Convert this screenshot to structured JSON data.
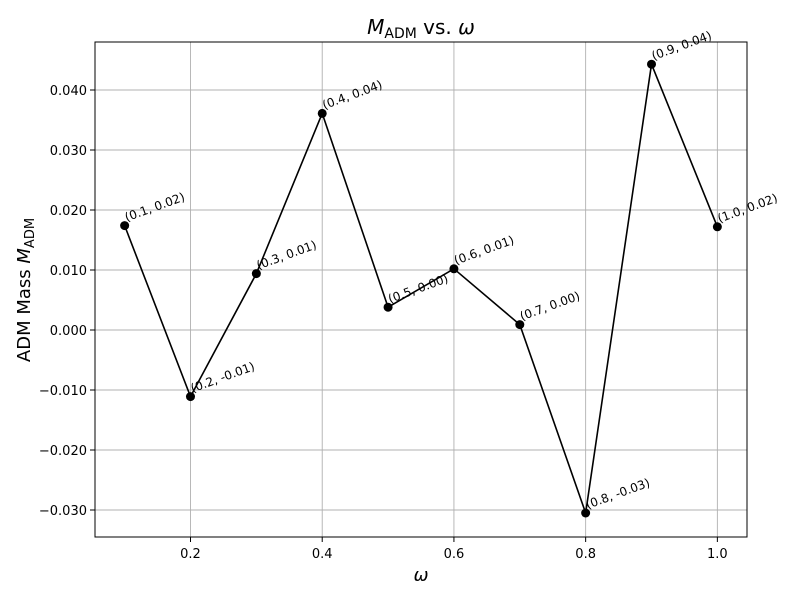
{
  "chart_data": {
    "type": "line",
    "title": {
      "prefix_italic": "M",
      "prefix_sub": "ADM",
      "middle": " vs. ",
      "suffix_italic": "ω"
    },
    "xlabel": "ω",
    "ylabel": {
      "text": "ADM Mass ",
      "italic": "M",
      "sub": "ADM"
    },
    "xlim": [
      0.055,
      1.045
    ],
    "ylim": [
      -0.0345,
      0.048
    ],
    "x_ticks": [
      0.2,
      0.4,
      0.6,
      0.8,
      1.0
    ],
    "x_tick_labels": [
      "0.2",
      "0.4",
      "0.6",
      "0.8",
      "1.0"
    ],
    "y_ticks": [
      -0.03,
      -0.02,
      -0.01,
      0.0,
      0.01,
      0.02,
      0.03,
      0.04
    ],
    "y_tick_labels": [
      "−0.030",
      "−0.020",
      "−0.010",
      "0.000",
      "0.010",
      "0.020",
      "0.030",
      "0.040"
    ],
    "grid": true,
    "line_color": "#000000",
    "series": [
      {
        "x": [
          0.1,
          0.2,
          0.3,
          0.4,
          0.5,
          0.6,
          0.7,
          0.8,
          0.9,
          1.0
        ],
        "y": [
          0.0174,
          -0.0111,
          0.0094,
          0.0361,
          0.0038,
          0.0102,
          0.0009,
          -0.0305,
          0.0443,
          0.0172
        ],
        "labels": [
          "(0.1, 0.02)",
          "(0.2, -0.01)",
          "(0.3, 0.01)",
          "(0.4, 0.04)",
          "(0.5, 0.00)",
          "(0.6, 0.01)",
          "(0.7, 0.00)",
          "(0.8, -0.03)",
          "(0.9, 0.04)",
          "(1.0, 0.02)"
        ]
      }
    ]
  }
}
